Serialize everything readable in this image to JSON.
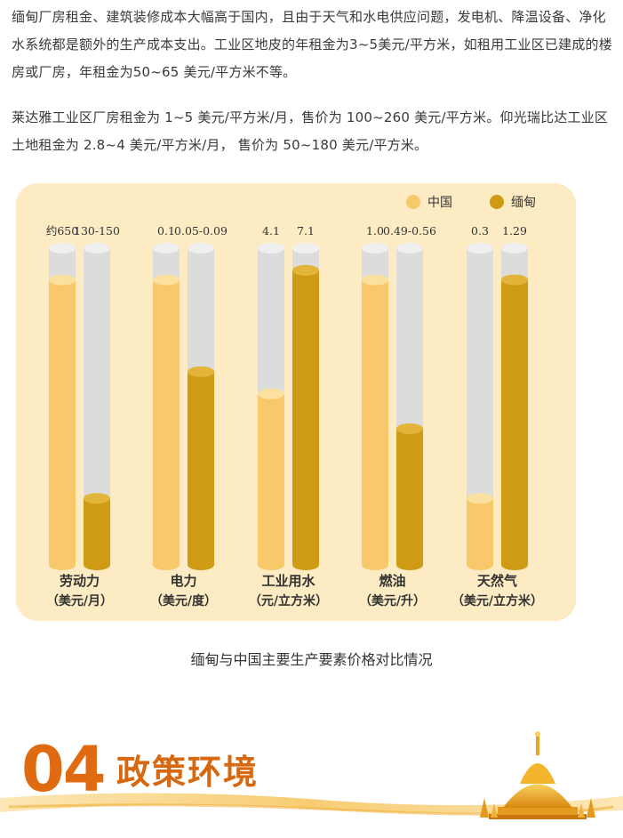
{
  "article": {
    "paragraph1": "缅甸厂房租金、建筑装修成本大幅高于国内，且由于天气和水电供应问题，发电机、降温设备、净化水系统都是额外的生产成本支出。工业区地皮的年租金为3~5美元/平方米，如租用工业区已建成的楼房或厂房，年租金为50~65 美元/平方米不等。",
    "paragraph2": "莱达雅工业区厂房租金为 1~5 美元/平方米/月，售价为 100~260 美元/平方米。仰光瑞比达工业区土地租金为 2.8~4 美元/平方米/月， 售价为 50~180 美元/平方米。"
  },
  "chart_data": {
    "type": "bar",
    "legend": [
      "中国",
      "缅甸"
    ],
    "legend_position": "top-right",
    "colors": {
      "china": "#f7c96a",
      "myanmar": "#cf9a14",
      "track": "#dcdcdc",
      "panel": "#fcebc3"
    },
    "categories": [
      {
        "name": "劳动力",
        "unit": "（美元/月）",
        "china_label": "约650",
        "myanmar_label": "130-150",
        "china_fill": 0.9,
        "myanmar_fill": 0.21
      },
      {
        "name": "电力",
        "unit": "（美元/度）",
        "china_label": "0.1",
        "myanmar_label": "0.05-0.09",
        "china_fill": 0.9,
        "myanmar_fill": 0.61
      },
      {
        "name": "工业用水",
        "unit": "（元/立方米）",
        "china_label": "4.1",
        "myanmar_label": "7.1",
        "china_fill": 0.54,
        "myanmar_fill": 0.93
      },
      {
        "name": "燃油",
        "unit": "（美元/升）",
        "china_label": "1.0",
        "myanmar_label": "0.49-0.56",
        "china_fill": 0.9,
        "myanmar_fill": 0.43
      },
      {
        "name": "天然气",
        "unit": "（美元/立方米）",
        "china_label": "0.3",
        "myanmar_label": "1.29",
        "china_fill": 0.21,
        "myanmar_fill": 0.9
      }
    ]
  },
  "caption": "缅甸与中国主要生产要素价格对比情况",
  "section": {
    "number": "04",
    "title": "政策环境"
  }
}
